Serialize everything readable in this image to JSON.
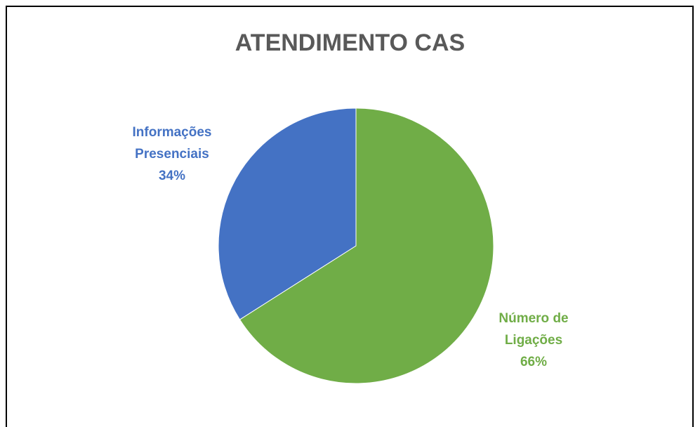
{
  "chart_data": {
    "type": "pie",
    "title": "ATENDIMENTO CAS",
    "categories": [
      "Número de Ligações",
      "Informações Presenciais"
    ],
    "values": [
      66,
      34
    ],
    "value_labels": [
      "66%",
      "34%"
    ],
    "colors": [
      "#70ad47",
      "#4472c4"
    ]
  }
}
